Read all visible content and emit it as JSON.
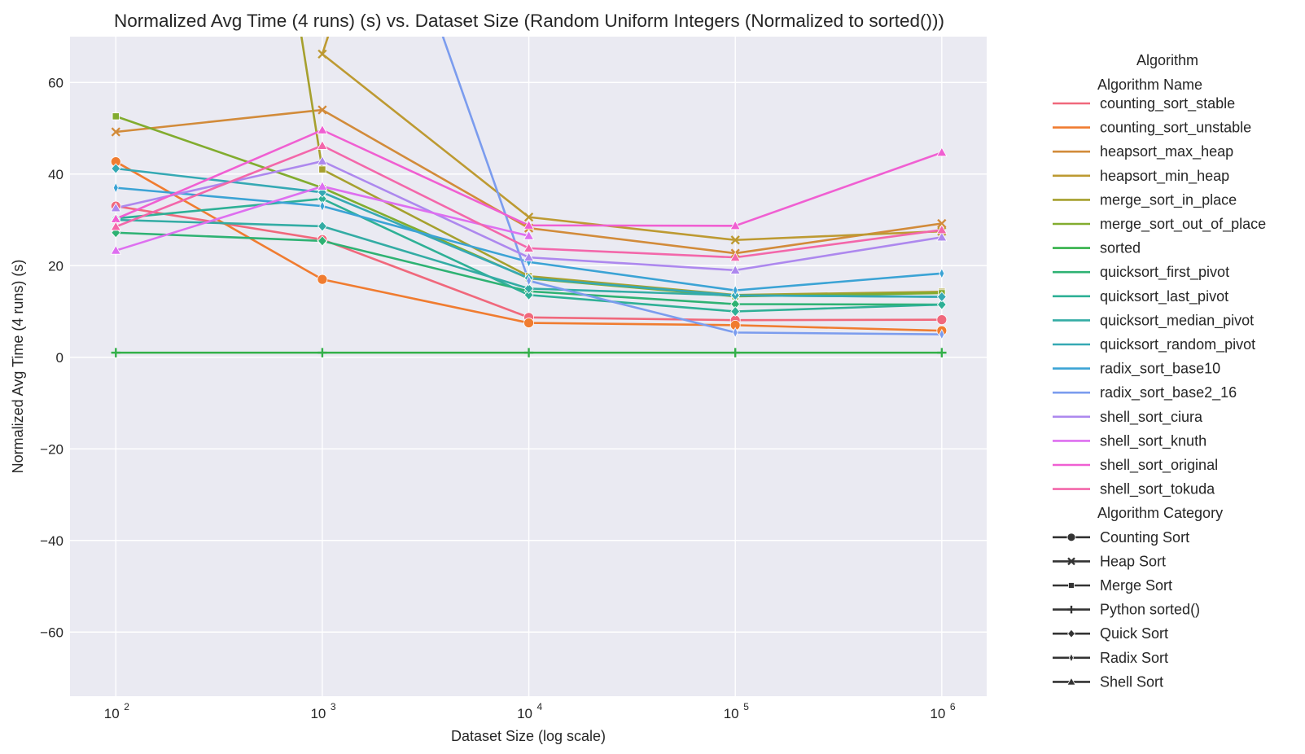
{
  "chart_data": {
    "type": "line",
    "title": "Normalized Avg Time (4 runs) (s) vs. Dataset Size (Random Uniform Integers (Normalized to sorted()))",
    "xlabel": "Dataset Size (log scale)",
    "ylabel": "Normalized Avg Time (4 runs) (s)",
    "x_scale": "log",
    "x": [
      100,
      1000,
      10000,
      100000,
      1000000
    ],
    "x_ticks": [
      {
        "value": 100,
        "base": "10",
        "exp": "2"
      },
      {
        "value": 1000,
        "base": "10",
        "exp": "3"
      },
      {
        "value": 10000,
        "base": "10",
        "exp": "4"
      },
      {
        "value": 100000,
        "base": "10",
        "exp": "5"
      },
      {
        "value": 1000000,
        "base": "10",
        "exp": "6"
      }
    ],
    "xlim": [
      60,
      1650000
    ],
    "ylim": [
      -74,
      70
    ],
    "y_ticks": [
      {
        "value": 60,
        "label": "60"
      },
      {
        "value": 40,
        "label": "40"
      },
      {
        "value": 20,
        "label": "20"
      },
      {
        "value": 0,
        "label": "0"
      },
      {
        "value": -20,
        "label": "−20"
      },
      {
        "value": -40,
        "label": "−40"
      },
      {
        "value": -60,
        "label": "−60"
      }
    ],
    "grid": true,
    "legend_placement": "outside-right",
    "legend": {
      "title": "Algorithm",
      "hue_title": "Algorithm Name",
      "style_title": "Algorithm Category",
      "categories": [
        {
          "name": "Counting Sort",
          "marker": "circle"
        },
        {
          "name": "Heap Sort",
          "marker": "x"
        },
        {
          "name": "Merge Sort",
          "marker": "square"
        },
        {
          "name": "Python sorted()",
          "marker": "plus"
        },
        {
          "name": "Quick Sort",
          "marker": "diamond"
        },
        {
          "name": "Radix Sort",
          "marker": "thin-diamond"
        },
        {
          "name": "Shell Sort",
          "marker": "triangle"
        }
      ]
    },
    "series": [
      {
        "name": "counting_sort_stable",
        "color": "#f0687c",
        "marker": "circle",
        "values": [
          33,
          25.7,
          8.7,
          8.1,
          8.2
        ]
      },
      {
        "name": "counting_sort_unstable",
        "color": "#f07c30",
        "marker": "circle",
        "values": [
          42.7,
          17,
          7.5,
          7.0,
          5.8
        ]
      },
      {
        "name": "heapsort_max_heap",
        "color": "#d28b3a",
        "marker": "x",
        "values": [
          49.2,
          54,
          28.2,
          22.7,
          29.2
        ]
      },
      {
        "name": "heapsort_min_heap",
        "color": "#bd9a32",
        "marker": "x",
        "values": [
          null,
          66.2,
          30.6,
          25.6,
          27.5
        ]
      },
      {
        "name": "merge_sort_in_place",
        "color": "#a6a02e",
        "marker": "square",
        "values": [
          null,
          41,
          17.7,
          13.6,
          14.3
        ]
      },
      {
        "name": "merge_sort_out_of_place",
        "color": "#82ac2f",
        "marker": "square",
        "values": [
          52.6,
          37,
          17.2,
          13.3,
          14.0
        ]
      },
      {
        "name": "sorted",
        "color": "#33b049",
        "marker": "plus",
        "values": [
          1,
          1,
          1,
          1,
          1
        ]
      },
      {
        "name": "quicksort_first_pivot",
        "color": "#2eb273",
        "marker": "diamond",
        "values": [
          27.2,
          25.4,
          14.4,
          11.6,
          11.5
        ]
      },
      {
        "name": "quicksort_last_pivot",
        "color": "#2eb096",
        "marker": "diamond",
        "values": [
          30.3,
          34.6,
          13.6,
          10.0,
          11.5
        ]
      },
      {
        "name": "quicksort_median_pivot",
        "color": "#33aca4",
        "marker": "diamond",
        "values": [
          30,
          28.6,
          15.0,
          13.5,
          13.2
        ]
      },
      {
        "name": "quicksort_random_pivot",
        "color": "#35a9b4",
        "marker": "diamond",
        "values": [
          41.2,
          36,
          17.3,
          13.5,
          13.2
        ]
      },
      {
        "name": "radix_sort_base10",
        "color": "#3ba3d5",
        "marker": "thin-diamond",
        "values": [
          37,
          33,
          20.8,
          14.6,
          18.3
        ]
      },
      {
        "name": "radix_sort_base2_16",
        "color": "#7b9cee",
        "marker": "thin-diamond",
        "values": [
          null,
          null,
          16.7,
          5.4,
          5.0
        ]
      },
      {
        "name": "shell_sort_ciura",
        "color": "#ad88ee",
        "marker": "triangle",
        "values": [
          32.6,
          42.8,
          21.8,
          19.0,
          26.2
        ]
      },
      {
        "name": "shell_sort_knuth",
        "color": "#de6ff0",
        "marker": "triangle",
        "values": [
          23.3,
          37.3,
          26.5,
          null,
          null
        ]
      },
      {
        "name": "shell_sort_original",
        "color": "#f05fd2",
        "marker": "triangle",
        "values": [
          30.2,
          49.6,
          28.8,
          28.7,
          44.7
        ]
      },
      {
        "name": "shell_sort_tokuda",
        "color": "#f367aa",
        "marker": "triangle",
        "values": [
          28.5,
          46.2,
          23.8,
          21.8,
          27.8
        ]
      }
    ],
    "offscreen_segments": [
      {
        "series": "heapsort_min_heap",
        "from": [
          1000,
          66.2
        ],
        "exits_top_at_x": 1130
      },
      {
        "series": "merge_sort_in_place",
        "from": [
          1000,
          41
        ],
        "exits_top_at_x": 770
      },
      {
        "series": "radix_sort_base2_16",
        "from": [
          10000,
          16.7
        ],
        "exits_top_at_x": 3600
      }
    ]
  }
}
